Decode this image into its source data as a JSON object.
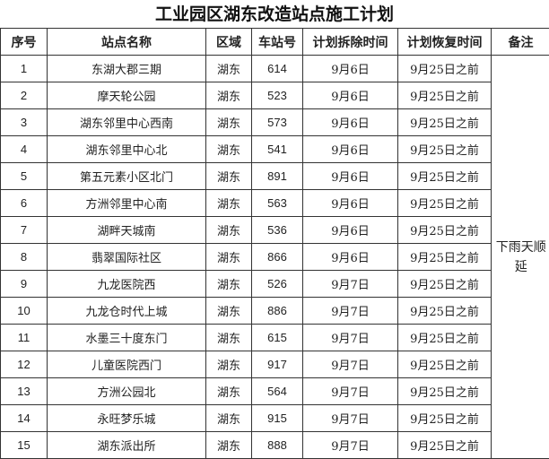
{
  "title": "工业园区湖东改造站点施工计划",
  "headers": [
    "序号",
    "站点名称",
    "区域",
    "车站号",
    "计划拆除时间",
    "计划恢复时间",
    "备注"
  ],
  "note": "下雨天顺延",
  "rows": [
    {
      "no": "1",
      "name": "东湖大郡三期",
      "area": "湖东",
      "station": "614",
      "remove": "9月6日",
      "restore": "9月25日之前"
    },
    {
      "no": "2",
      "name": "摩天轮公园",
      "area": "湖东",
      "station": "523",
      "remove": "9月6日",
      "restore": "9月25日之前"
    },
    {
      "no": "3",
      "name": "湖东邻里中心西南",
      "area": "湖东",
      "station": "573",
      "remove": "9月6日",
      "restore": "9月25日之前"
    },
    {
      "no": "4",
      "name": "湖东邻里中心北",
      "area": "湖东",
      "station": "541",
      "remove": "9月6日",
      "restore": "9月25日之前"
    },
    {
      "no": "5",
      "name": "第五元素小区北门",
      "area": "湖东",
      "station": "891",
      "remove": "9月6日",
      "restore": "9月25日之前"
    },
    {
      "no": "6",
      "name": "方洲邻里中心南",
      "area": "湖东",
      "station": "563",
      "remove": "9月6日",
      "restore": "9月25日之前"
    },
    {
      "no": "7",
      "name": "湖畔天城南",
      "area": "湖东",
      "station": "536",
      "remove": "9月6日",
      "restore": "9月25日之前"
    },
    {
      "no": "8",
      "name": "翡翠国际社区",
      "area": "湖东",
      "station": "866",
      "remove": "9月6日",
      "restore": "9月25日之前"
    },
    {
      "no": "9",
      "name": "九龙医院西",
      "area": "湖东",
      "station": "526",
      "remove": "9月7日",
      "restore": "9月25日之前"
    },
    {
      "no": "10",
      "name": "九龙仓时代上城",
      "area": "湖东",
      "station": "886",
      "remove": "9月7日",
      "restore": "9月25日之前"
    },
    {
      "no": "11",
      "name": "水墨三十度东门",
      "area": "湖东",
      "station": "615",
      "remove": "9月7日",
      "restore": "9月25日之前"
    },
    {
      "no": "12",
      "name": "儿童医院西门",
      "area": "湖东",
      "station": "917",
      "remove": "9月7日",
      "restore": "9月25日之前"
    },
    {
      "no": "13",
      "name": "方洲公园北",
      "area": "湖东",
      "station": "564",
      "remove": "9月7日",
      "restore": "9月25日之前"
    },
    {
      "no": "14",
      "name": "永旺梦乐城",
      "area": "湖东",
      "station": "915",
      "remove": "9月7日",
      "restore": "9月25日之前"
    },
    {
      "no": "15",
      "name": "湖东派出所",
      "area": "湖东",
      "station": "888",
      "remove": "9月7日",
      "restore": "9月25日之前"
    }
  ]
}
